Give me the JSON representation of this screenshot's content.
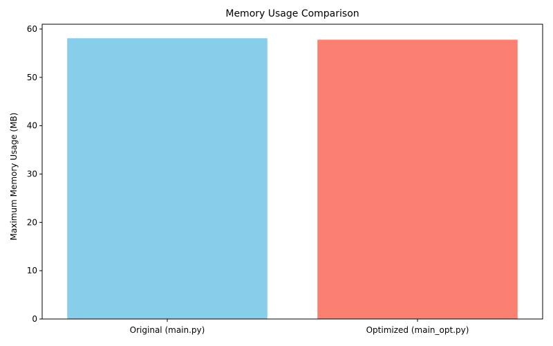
{
  "chart_data": {
    "type": "bar",
    "title": "Memory Usage Comparison",
    "xlabel": "",
    "ylabel": "Maximum Memory Usage (MB)",
    "categories": [
      "Original (main.py)",
      "Optimized (main_opt.py)"
    ],
    "values": [
      58.1,
      57.8
    ],
    "colors": [
      "#87ceeb",
      "#fa8072"
    ],
    "ylim": [
      0,
      61
    ],
    "yticks": [
      0,
      10,
      20,
      30,
      40,
      50,
      60
    ],
    "grid": false,
    "legend": "none"
  }
}
